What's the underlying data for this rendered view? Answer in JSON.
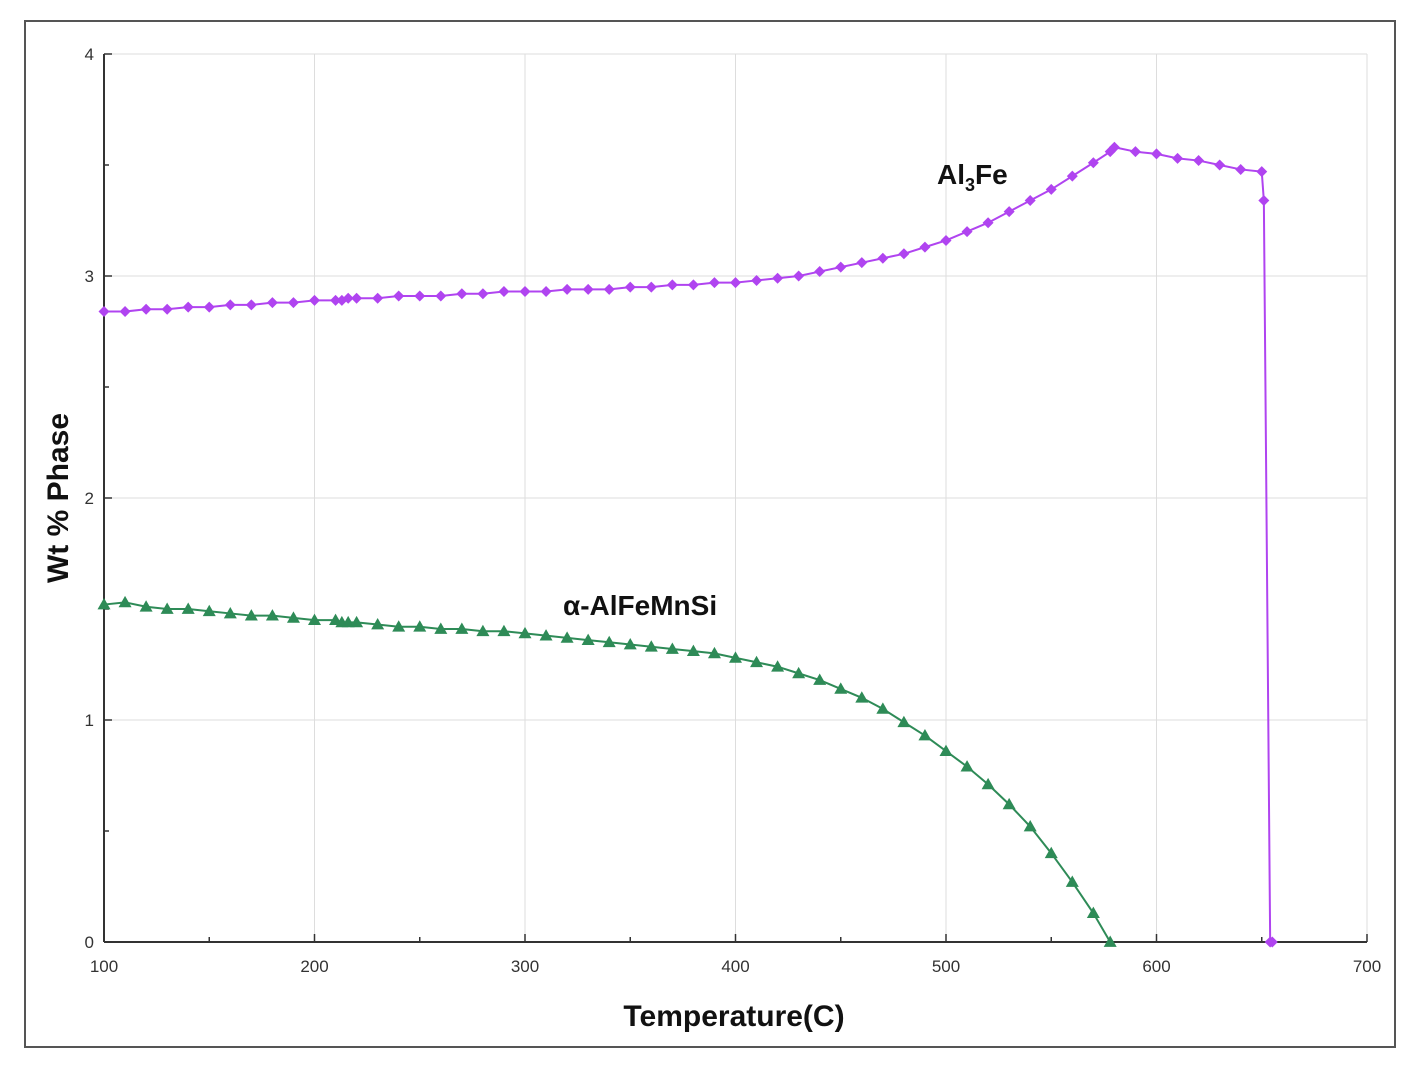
{
  "chart_data": {
    "type": "line",
    "title": "",
    "xlabel": "Temperature(C)",
    "ylabel": "Wt % Phase",
    "xlim": [
      100,
      700
    ],
    "ylim": [
      0,
      4
    ],
    "xticks": [
      100,
      200,
      300,
      400,
      500,
      600,
      700
    ],
    "yticks": [
      0,
      1,
      2,
      3,
      4
    ],
    "grid": true,
    "legend": "none",
    "series": [
      {
        "name": "Al3Fe",
        "label_main": "Al",
        "label_sub": "3",
        "label_tail": "Fe",
        "color": "#b044f0",
        "marker": "diamond",
        "x": [
          100,
          110,
          120,
          130,
          140,
          150,
          160,
          170,
          180,
          190,
          200,
          210,
          213,
          216,
          220,
          230,
          240,
          250,
          260,
          270,
          280,
          290,
          300,
          310,
          320,
          330,
          340,
          350,
          360,
          370,
          380,
          390,
          400,
          410,
          420,
          430,
          440,
          450,
          460,
          470,
          480,
          490,
          500,
          510,
          520,
          530,
          540,
          550,
          560,
          570,
          578,
          580,
          590,
          600,
          610,
          620,
          630,
          640,
          650,
          651
        ],
        "y": [
          2.84,
          2.84,
          2.85,
          2.85,
          2.86,
          2.86,
          2.87,
          2.87,
          2.88,
          2.88,
          2.89,
          2.89,
          2.89,
          2.9,
          2.9,
          2.9,
          2.91,
          2.91,
          2.91,
          2.92,
          2.92,
          2.93,
          2.93,
          2.93,
          2.94,
          2.94,
          2.94,
          2.95,
          2.95,
          2.96,
          2.96,
          2.97,
          2.97,
          2.98,
          2.99,
          3.0,
          3.02,
          3.04,
          3.06,
          3.08,
          3.1,
          3.13,
          3.16,
          3.2,
          3.24,
          3.29,
          3.34,
          3.39,
          3.45,
          3.51,
          3.56,
          3.58,
          3.56,
          3.55,
          3.53,
          3.52,
          3.5,
          3.48,
          3.47,
          3.34
        ],
        "drop_to_zero": {
          "x": [
            651,
            654,
            655
          ],
          "y": [
            3.34,
            0,
            0
          ]
        }
      },
      {
        "name": "α-AlFeMnSi",
        "color": "#2e8b57",
        "marker": "triangle",
        "x": [
          100,
          110,
          120,
          130,
          140,
          150,
          160,
          170,
          180,
          190,
          200,
          210,
          213,
          216,
          220,
          230,
          240,
          250,
          260,
          270,
          280,
          290,
          300,
          310,
          320,
          330,
          340,
          350,
          360,
          370,
          380,
          390,
          400,
          410,
          420,
          430,
          440,
          450,
          460,
          470,
          480,
          490,
          500,
          510,
          520,
          530,
          540,
          550,
          560,
          570,
          578
        ],
        "y": [
          1.52,
          1.53,
          1.51,
          1.5,
          1.5,
          1.49,
          1.48,
          1.47,
          1.47,
          1.46,
          1.45,
          1.45,
          1.44,
          1.44,
          1.44,
          1.43,
          1.42,
          1.42,
          1.41,
          1.41,
          1.4,
          1.4,
          1.39,
          1.38,
          1.37,
          1.36,
          1.35,
          1.34,
          1.33,
          1.32,
          1.31,
          1.3,
          1.28,
          1.26,
          1.24,
          1.21,
          1.18,
          1.14,
          1.1,
          1.05,
          0.99,
          0.93,
          0.86,
          0.79,
          0.71,
          0.62,
          0.52,
          0.4,
          0.27,
          0.13,
          0.0
        ]
      }
    ]
  }
}
